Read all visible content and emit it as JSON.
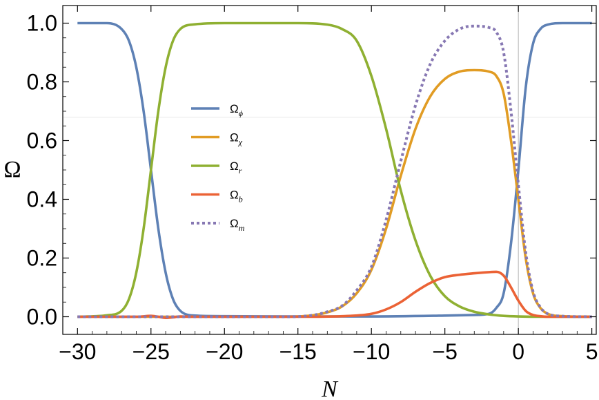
{
  "chart_data": {
    "type": "line",
    "title": "",
    "xlabel": "N",
    "ylabel": "Ω",
    "xlim": [
      -31,
      5.3
    ],
    "ylim": [
      -0.06,
      1.06
    ],
    "xticks": [
      -30,
      -25,
      -20,
      -15,
      -10,
      -5,
      0,
      5
    ],
    "xtick_labels": [
      "−30",
      "−25",
      "−20",
      "−15",
      "−10",
      "−5",
      "0",
      "5"
    ],
    "yticks": [
      0.0,
      0.2,
      0.4,
      0.6,
      0.8,
      1.0
    ],
    "ytick_labels": [
      "0.0",
      "0.2",
      "0.4",
      "0.6",
      "0.8",
      "1.0"
    ],
    "grid": false,
    "legend_position": "center-left",
    "reference_lines": {
      "vertical_x": 0,
      "horizontal_y": 0.68
    },
    "series": [
      {
        "name": "Ω_ϕ",
        "label_main": "Ω",
        "label_sub": "ϕ",
        "color": "#5e81b5",
        "dash": "solid",
        "x": [
          -30,
          -28,
          -27,
          -26.5,
          -26,
          -25.5,
          -25,
          -24.5,
          -24,
          -23.5,
          -23,
          -22,
          -20,
          -15,
          -10,
          -5,
          -3,
          -2,
          -1.5,
          -1,
          -0.5,
          0,
          0.5,
          1,
          1.5,
          2,
          3,
          5
        ],
        "y": [
          1.0,
          1.0,
          0.98,
          0.94,
          0.85,
          0.7,
          0.5,
          0.3,
          0.15,
          0.06,
          0.02,
          0.004,
          0.002,
          0.001,
          0.001,
          0.004,
          0.006,
          0.01,
          0.03,
          0.08,
          0.25,
          0.5,
          0.78,
          0.93,
          0.98,
          0.995,
          1.0,
          1.0
        ]
      },
      {
        "name": "Ω_χ",
        "label_main": "Ω",
        "label_sub": "χ",
        "color": "#e19c24",
        "dash": "solid",
        "x": [
          -30,
          -16,
          -14,
          -13,
          -12,
          -11,
          -10,
          -9,
          -8,
          -7,
          -6,
          -5,
          -4,
          -3,
          -2,
          -1.5,
          -1,
          -0.5,
          0,
          0.5,
          1,
          1.5,
          2,
          3,
          5
        ],
        "y": [
          0.0,
          0.0,
          0.005,
          0.015,
          0.035,
          0.08,
          0.16,
          0.3,
          0.48,
          0.64,
          0.75,
          0.81,
          0.835,
          0.84,
          0.835,
          0.82,
          0.76,
          0.6,
          0.4,
          0.2,
          0.08,
          0.03,
          0.01,
          0.002,
          0.0
        ]
      },
      {
        "name": "Ω_r",
        "label_main": "Ω",
        "label_sub": "r",
        "color": "#8fb032",
        "dash": "solid",
        "x": [
          -30,
          -28,
          -27,
          -26.5,
          -26,
          -25.5,
          -25,
          -24.5,
          -24,
          -23.5,
          -23,
          -22,
          -20,
          -15,
          -13,
          -12,
          -11,
          -10,
          -9,
          -8,
          -7,
          -6,
          -5,
          -4,
          -3,
          -2,
          -1,
          0,
          2,
          5
        ],
        "y": [
          0.0,
          0.005,
          0.02,
          0.06,
          0.15,
          0.3,
          0.5,
          0.7,
          0.85,
          0.94,
          0.98,
          0.996,
          1.0,
          1.0,
          0.995,
          0.98,
          0.94,
          0.82,
          0.64,
          0.43,
          0.26,
          0.14,
          0.07,
          0.035,
          0.017,
          0.008,
          0.003,
          0.001,
          0.0,
          0.0
        ]
      },
      {
        "name": "Ω_b",
        "label_main": "Ω",
        "label_sub": "b",
        "color": "#eb6235",
        "dash": "solid",
        "x": [
          -30,
          -26,
          -25,
          -24.5,
          -24,
          -23.5,
          -23,
          -22,
          -15,
          -12,
          -10,
          -9,
          -8,
          -7,
          -6,
          -5,
          -4,
          -3,
          -2,
          -1.5,
          -1,
          -0.5,
          0,
          0.5,
          1,
          1.5,
          2,
          5
        ],
        "y": [
          0.0,
          0.0,
          0.003,
          0.0,
          -0.004,
          -0.002,
          0.001,
          0.0,
          0.0,
          0.002,
          0.01,
          0.025,
          0.05,
          0.085,
          0.115,
          0.135,
          0.143,
          0.148,
          0.152,
          0.153,
          0.14,
          0.1,
          0.055,
          0.02,
          0.006,
          0.002,
          0.0,
          0.0
        ]
      },
      {
        "name": "Ω_m",
        "label_main": "Ω",
        "label_sub": "m",
        "color": "#8778b3",
        "dash": "dotted",
        "x": [
          -30,
          -16,
          -14,
          -13,
          -12,
          -11,
          -10,
          -9,
          -8,
          -7,
          -6,
          -5,
          -4,
          -3,
          -2,
          -1.5,
          -1,
          -0.5,
          0,
          0.5,
          1,
          1.5,
          2,
          3,
          5
        ],
        "y": [
          0.0,
          0.0,
          0.005,
          0.017,
          0.037,
          0.09,
          0.17,
          0.33,
          0.53,
          0.72,
          0.86,
          0.94,
          0.98,
          0.99,
          0.985,
          0.97,
          0.9,
          0.7,
          0.45,
          0.22,
          0.086,
          0.032,
          0.01,
          0.002,
          0.0
        ]
      }
    ]
  }
}
